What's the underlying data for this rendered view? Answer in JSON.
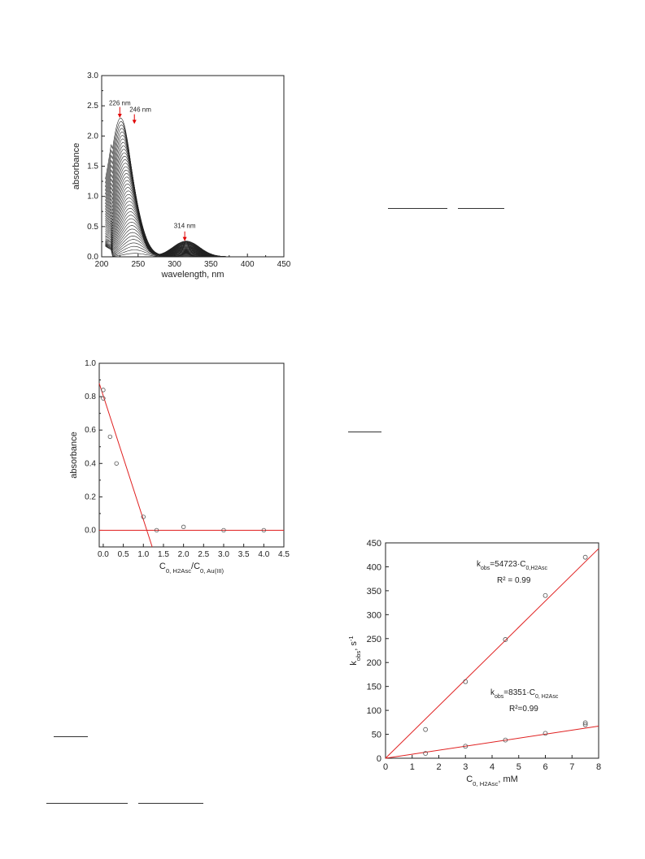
{
  "chart_data": [
    {
      "type": "line",
      "xlabel": "wavelength, nm",
      "ylabel": "absorbance",
      "xlim": [
        200,
        450
      ],
      "ylim": [
        0.0,
        3.0
      ],
      "xticks": [
        "200",
        "250",
        "300",
        "350",
        "400",
        "450"
      ],
      "yticks": [
        "0.0",
        "0.5",
        "1.0",
        "1.5",
        "2.0",
        "2.5",
        "3.0"
      ],
      "curve_count": 40,
      "peak_226_max": 2.3,
      "peak_314_max": 0.26,
      "annotations": [
        {
          "text": "226 nm",
          "x": 226,
          "y": 2.3
        },
        {
          "text": "246 nm",
          "x": 246,
          "y": 2.28
        },
        {
          "text": "314 nm",
          "x": 314,
          "y": 0.26
        }
      ],
      "grid": false,
      "line_color": "#222222",
      "arrow_color": "#e00000"
    },
    {
      "type": "scatter",
      "xlabel_main": "C",
      "xlabel_sub1": "0, H2Asc",
      "xlabel_mid": "/C",
      "xlabel_sub2": "0, Au(III)",
      "ylabel": "absorbance",
      "xlim": [
        -0.1,
        4.5
      ],
      "ylim": [
        -0.1,
        1.0
      ],
      "xticks": [
        "0.0",
        "0.5",
        "1.0",
        "1.5",
        "2.0",
        "2.5",
        "3.0",
        "3.5",
        "4.0",
        "4.5"
      ],
      "yticks": [
        "0.0",
        "0.2",
        "0.4",
        "0.6",
        "0.8",
        "1.0"
      ],
      "points": [
        {
          "x": 0.0,
          "y": 0.84
        },
        {
          "x": 0.0,
          "y": 0.79
        },
        {
          "x": 0.17,
          "y": 0.56
        },
        {
          "x": 0.33,
          "y": 0.4
        },
        {
          "x": 1.0,
          "y": 0.08
        },
        {
          "x": 1.33,
          "y": 0.0
        },
        {
          "x": 2.0,
          "y": 0.02
        },
        {
          "x": 3.0,
          "y": 0.0
        },
        {
          "x": 4.0,
          "y": 0.0
        }
      ],
      "fit_lines": [
        {
          "x": [
            -0.1,
            1.22
          ],
          "y": [
            0.88,
            -0.1
          ]
        },
        {
          "x": [
            -0.1,
            4.5
          ],
          "y": [
            0.0,
            0.0
          ]
        }
      ],
      "line_color": "#e02020",
      "grid": false
    },
    {
      "type": "scatter",
      "xlabel_main": "C",
      "xlabel_sub": "0, H2Asc",
      "xlabel_unit": ", mM",
      "ylabel_main": "k",
      "ylabel_sub": "obs",
      "ylabel_unit": ", s",
      "ylabel_sup": "-1",
      "xlim": [
        0,
        8
      ],
      "ylim": [
        0,
        450
      ],
      "xticks": [
        "0",
        "1",
        "2",
        "3",
        "4",
        "5",
        "6",
        "7",
        "8"
      ],
      "yticks": [
        "0",
        "50",
        "100",
        "150",
        "200",
        "250",
        "300",
        "350",
        "400",
        "450"
      ],
      "series": [
        {
          "points": [
            {
              "x": 1.5,
              "y": 60
            },
            {
              "x": 3.0,
              "y": 160
            },
            {
              "x": 4.5,
              "y": 248
            },
            {
              "x": 6.0,
              "y": 340
            },
            {
              "x": 7.5,
              "y": 420
            }
          ],
          "fit": {
            "x": [
              0,
              8
            ],
            "y": [
              0,
              438
            ]
          },
          "eq_main": "k",
          "eq_sub1": "obs",
          "eq_mid": "=54723·C",
          "eq_sub2": "0,H2Asc",
          "r2": "R² = 0.99"
        },
        {
          "points": [
            {
              "x": 1.5,
              "y": 10
            },
            {
              "x": 3.0,
              "y": 25
            },
            {
              "x": 4.5,
              "y": 38
            },
            {
              "x": 6.0,
              "y": 52
            },
            {
              "x": 7.5,
              "y": 70
            },
            {
              "x": 7.5,
              "y": 74
            }
          ],
          "fit": {
            "x": [
              0,
              8
            ],
            "y": [
              0,
              67
            ]
          },
          "eq_main": "k",
          "eq_sub1": "obs",
          "eq_mid": "=8351·C",
          "eq_sub2": "0, H2Asc",
          "r2": "R²=0.99"
        }
      ],
      "line_color": "#e02020",
      "grid": false
    }
  ]
}
